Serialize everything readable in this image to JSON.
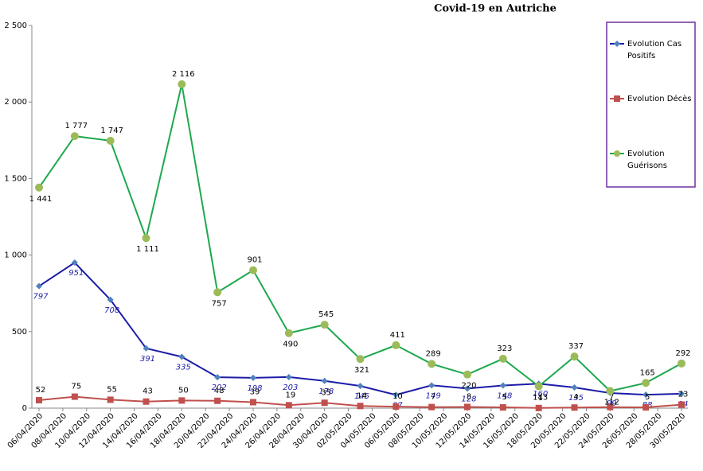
{
  "chart_data": {
    "type": "line",
    "title": "Covid-19 en Autriche",
    "x": [
      "06/04/2020",
      "09/04/2020",
      "12/04/2020",
      "15/04/2020",
      "18/04/2020",
      "21/04/2020",
      "24/04/2020",
      "27/04/2020",
      "30/04/2020",
      "03/05/2020",
      "06/05/2020",
      "09/05/2020",
      "12/05/2020",
      "15/05/2020",
      "18/05/2020",
      "21/05/2020",
      "24/05/2020",
      "27/05/2020",
      "30/05/2020"
    ],
    "xlim": [
      "06/04/2020",
      "30/05/2020"
    ],
    "xticks": [
      "06/04/2020",
      "08/04/2020",
      "10/04/2020",
      "12/04/2020",
      "14/04/2020",
      "16/04/2020",
      "18/04/2020",
      "20/04/2020",
      "22/04/2020",
      "24/04/2020",
      "26/04/2020",
      "28/04/2020",
      "30/04/2020",
      "02/05/2020",
      "04/05/2020",
      "06/05/2020",
      "08/05/2020",
      "10/05/2020",
      "12/05/2020",
      "14/05/2020",
      "16/05/2020",
      "18/05/2020",
      "20/05/2020",
      "22/05/2020",
      "24/05/2020",
      "26/05/2020",
      "28/05/2020",
      "30/05/2020"
    ],
    "ylim": [
      0,
      2500
    ],
    "yticks": [
      0,
      500,
      {
        "value": 1000,
        "label": "1 000"
      },
      {
        "value": 1500,
        "label": "1 500"
      },
      {
        "value": 2000,
        "label": "2 000"
      },
      {
        "value": 2500,
        "label": "2 500"
      }
    ],
    "series": [
      {
        "name": "Evolution Cas Positifs",
        "color": "#1c1ca8",
        "marker_color": "#4f81bd",
        "marker": "diamond",
        "label_color": "#1c1ca8",
        "values": [
          797,
          951,
          708,
          391,
          335,
          202,
          198,
          203,
          178,
          145,
          87,
          149,
          128,
          148,
          160,
          135,
          99,
          88,
          94
        ]
      },
      {
        "name": "Evolution Décès",
        "color": "#c0504d",
        "marker_color": "#c0504d",
        "marker": "square",
        "label_color": "#000000",
        "values": [
          52,
          75,
          55,
          43,
          50,
          48,
          39,
          19,
          35,
          14,
          10,
          7,
          8,
          5,
          1,
          4,
          7,
          5,
          23
        ]
      },
      {
        "name": "Evolution Guérisons",
        "color": "#1ea84e",
        "marker_color": "#9bbb59",
        "marker": "circle",
        "label_color": "#000000",
        "values": [
          1441,
          1777,
          1747,
          1111,
          2116,
          757,
          901,
          490,
          545,
          321,
          411,
          289,
          220,
          323,
          143,
          337,
          112,
          165,
          292
        ],
        "value_labels": [
          "1 441",
          "1 777",
          "1 747",
          "1 111",
          "2 116",
          "757",
          "901",
          "490",
          "545",
          "321",
          "411",
          "289",
          "220",
          "323",
          "143",
          "337",
          "112",
          "165",
          "292"
        ]
      }
    ],
    "legend": "upper right"
  }
}
